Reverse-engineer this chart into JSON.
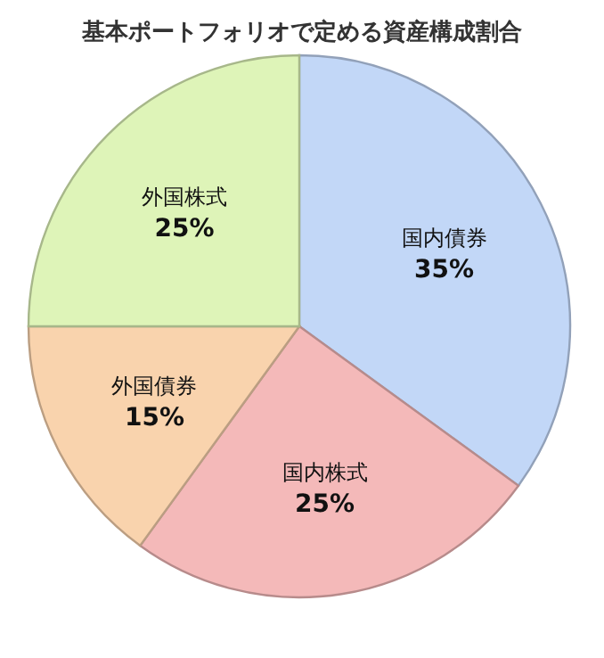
{
  "chart_data": {
    "type": "pie",
    "title": "基本ポートフォリオで定める資産構成割合",
    "categories": [
      "国内債券",
      "国内株式",
      "外国債券",
      "外国株式"
    ],
    "values": [
      35,
      25,
      15,
      25
    ],
    "value_labels": [
      "35%",
      "25%",
      "15%",
      "25%"
    ],
    "colors": [
      "#c2d7f7",
      "#f4b9b9",
      "#f9d3ad",
      "#def4b8"
    ]
  }
}
